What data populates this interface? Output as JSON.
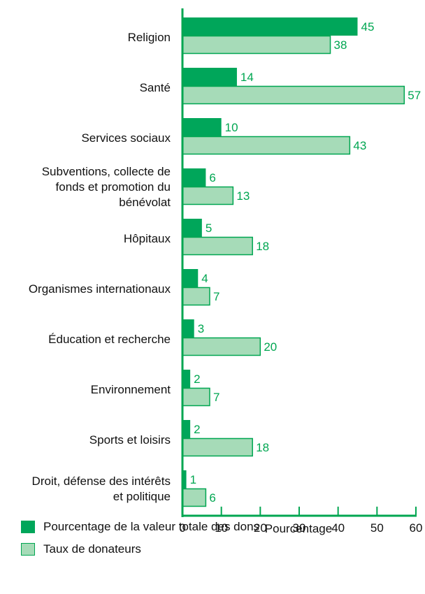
{
  "colors": {
    "dark": "#00a65a",
    "light": "#a6dbb8",
    "stroke": "#00a651",
    "label": "#00a651",
    "axis": "#00a651"
  },
  "chart_data": {
    "type": "bar",
    "orientation": "horizontal",
    "categories": [
      "Religion",
      "Santé",
      "Services sociaux",
      "Subventions, collecte de fonds et promotion du bénévolat",
      "Hôpitaux",
      "Organismes internationaux",
      "Éducation et recherche",
      "Environnement",
      "Sports et loisirs",
      "Droit, défense des intérêts et politique"
    ],
    "category_lines": [
      [
        "Religion"
      ],
      [
        "Santé"
      ],
      [
        "Services sociaux"
      ],
      [
        "Subventions, collecte de",
        "fonds et promotion du",
        "bénévolat"
      ],
      [
        "Hôpitaux"
      ],
      [
        "Organismes internationaux"
      ],
      [
        "Éducation et recherche"
      ],
      [
        "Environnement"
      ],
      [
        "Sports et loisirs"
      ],
      [
        "Droit, défense des intérêts",
        "et politique"
      ]
    ],
    "series": [
      {
        "name": "Pourcentage de la valeur totale des dons",
        "values": [
          45,
          14,
          10,
          6,
          5,
          4,
          3,
          2,
          2,
          1
        ]
      },
      {
        "name": "Taux de donateurs",
        "values": [
          38,
          57,
          43,
          13,
          18,
          7,
          20,
          7,
          18,
          6
        ]
      }
    ],
    "xlabel": "Pourcentage",
    "xlim": [
      0,
      60
    ],
    "xticks": [
      0,
      10,
      20,
      30,
      40,
      50,
      60
    ],
    "grid": false,
    "legend_position": "bottom-left"
  }
}
